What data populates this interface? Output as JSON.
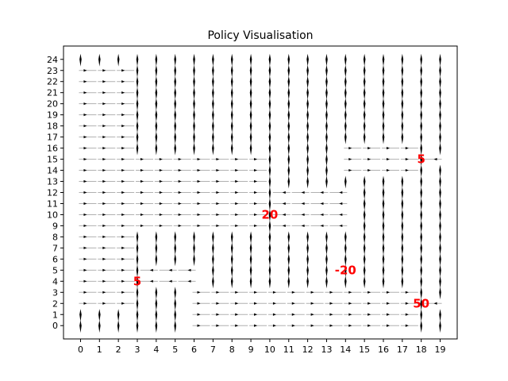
{
  "chart_data": {
    "type": "quiver",
    "title": "Policy Visualisation",
    "xlabel": "",
    "ylabel": "",
    "xlim": [
      -0.9,
      19.9
    ],
    "ylim": [
      -1.2,
      25.2
    ],
    "x_ticks": [
      "0",
      "1",
      "2",
      "3",
      "4",
      "5",
      "6",
      "7",
      "8",
      "9",
      "10",
      "11",
      "12",
      "13",
      "14",
      "15",
      "16",
      "17",
      "18",
      "19"
    ],
    "y_ticks": [
      "0",
      "1",
      "2",
      "3",
      "4",
      "5",
      "6",
      "7",
      "8",
      "9",
      "10",
      "11",
      "12",
      "13",
      "14",
      "15",
      "16",
      "17",
      "18",
      "19",
      "20",
      "21",
      "22",
      "23",
      "24"
    ],
    "grid": false,
    "policy_region_right": [
      {
        "y_from": 16,
        "y_to": 23,
        "x_from": 0,
        "x_to": 2
      },
      {
        "y_from": 9,
        "y_to": 15,
        "x_from": 0,
        "x_to": 9
      },
      {
        "y_from": 2,
        "y_to": 8,
        "x_from": 0,
        "x_to": 2
      },
      {
        "y_from": 0,
        "y_to": 3,
        "x_from": 6,
        "x_to": 17
      },
      {
        "y_from": 14,
        "y_to": 16,
        "x_from": 14,
        "x_to": 17
      }
    ],
    "policy_region_left": [
      {
        "y_from": 9,
        "y_to": 12,
        "x_from": 11,
        "x_to": 14
      },
      {
        "y_from": 4,
        "y_to": 5,
        "x_from": 4,
        "x_to": 6
      },
      {
        "y_from": 2,
        "y_to": 2,
        "x_from": 19,
        "x_to": 19
      },
      {
        "y_from": 15,
        "y_to": 15,
        "x_from": 19,
        "x_to": 19
      }
    ],
    "default_action": "up",
    "rewards": [
      {
        "label": "5",
        "x": 18,
        "y": 15,
        "color": "#ff0000"
      },
      {
        "label": "20",
        "x": 10,
        "y": 10,
        "color": "#ff0000"
      },
      {
        "label": "-20",
        "x": 14,
        "y": 5,
        "color": "#ff0000"
      },
      {
        "label": "5",
        "x": 3,
        "y": 4,
        "color": "#ff0000"
      },
      {
        "label": "50",
        "x": 18,
        "y": 2,
        "color": "#ff0000"
      }
    ],
    "arrow_color": "#000000",
    "shaft_color": "#b0b0b0"
  }
}
